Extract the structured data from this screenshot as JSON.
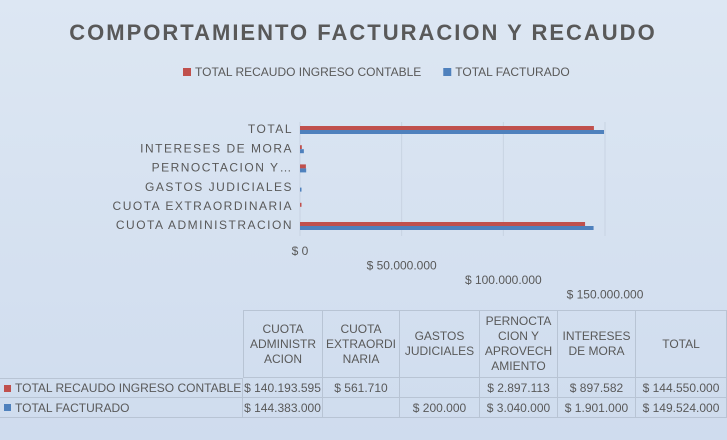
{
  "chart_data": {
    "type": "bar",
    "orientation": "horizontal",
    "title": "COMPORTAMIENTO FACTURACION Y RECAUDO",
    "categories": [
      "CUOTA ADMINISTRACION",
      "CUOTA EXTRAORDINARIA",
      "GASTOS JUDICIALES",
      "PERNOCTACION Y APROVECHAMIENTO",
      "INTERESES DE MORA",
      "TOTAL"
    ],
    "axis_labels": [
      "CUOTA ADMINISTRACION",
      "CUOTA EXTRAORDINARIA",
      "GASTOS JUDICIALES",
      "PERNOCTACION Y…",
      "INTERESES DE MORA",
      "TOTAL"
    ],
    "series": [
      {
        "name": "TOTAL RECAUDO INGRESO CONTABLE",
        "color": "#c0504d",
        "values": [
          140193595,
          561710,
          null,
          2897113,
          897582,
          144550000
        ],
        "value_labels": [
          "$ 140.193.595",
          "$ 561.710",
          null,
          "$ 2.897.113",
          "$ 897.582",
          "$ 144.550.000"
        ]
      },
      {
        "name": "TOTAL FACTURADO",
        "color": "#4f81bd",
        "values": [
          144383000,
          null,
          200000,
          3040000,
          1901000,
          149524000
        ],
        "value_labels": [
          "$ 144.383.000",
          null,
          "$ 200.000",
          "$ 3.040.000",
          "$ 1.901.000",
          "$ 149.524.000"
        ]
      }
    ],
    "xlim": [
      0,
      150000000
    ],
    "xticks": [
      {
        "value": 0,
        "label": "$ 0"
      },
      {
        "value": 50000000,
        "label": "$ 50.000.000"
      },
      {
        "value": 100000000,
        "label": "$ 100.000.000"
      },
      {
        "value": 150000000,
        "label": "$ 150.000.000"
      }
    ],
    "legend": "top",
    "data_table": true
  }
}
